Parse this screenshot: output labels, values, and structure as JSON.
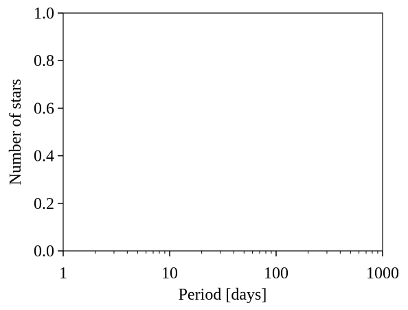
{
  "chart_data": {
    "type": "bar",
    "title": "",
    "xlabel": "Period [days]",
    "ylabel": "Number of stars",
    "xscale": "log",
    "xlim": [
      1,
      1000
    ],
    "ylim": [
      0,
      1.0
    ],
    "xticks": [
      {
        "value": 1,
        "label": "1"
      },
      {
        "value": 10,
        "label": "10"
      },
      {
        "value": 100,
        "label": "100"
      },
      {
        "value": 1000,
        "label": "1000"
      }
    ],
    "yticks": [
      {
        "value": 0.0,
        "label": "0.0"
      },
      {
        "value": 0.2,
        "label": "0.2"
      },
      {
        "value": 0.4,
        "label": "0.4"
      },
      {
        "value": 0.6,
        "label": "0.6"
      },
      {
        "value": 0.8,
        "label": "0.8"
      },
      {
        "value": 1.0,
        "label": "1.0"
      }
    ],
    "series": [],
    "grid": false,
    "legend": "none",
    "colors": {
      "axis": "#000000",
      "background": "#ffffff"
    }
  }
}
